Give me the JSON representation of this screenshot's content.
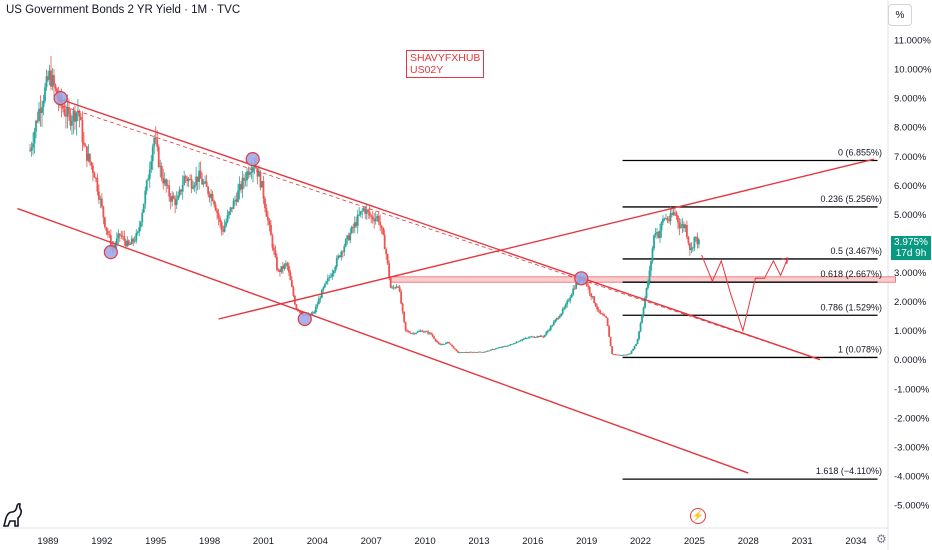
{
  "header": {
    "title": "US Government Bonds 2 YR Yield · 1M · TVC",
    "scale_button": "%"
  },
  "watermark": {
    "line1": "SHAVYFXHUB",
    "line2": "US02Y"
  },
  "price_badge": {
    "value": "3.975%",
    "countdown": "17d 9h",
    "color": "#089981"
  },
  "icons": {
    "logo": "tradingview-logo-icon",
    "bolt": "lightning-icon",
    "settings": "settings-icon"
  },
  "colors": {
    "up": "#26a69a",
    "down": "#ef5350",
    "trendline": "#e5363f",
    "fib": "#000000",
    "zone": "#f8c9c9"
  },
  "chart_data": {
    "type": "candlestick",
    "title": "US Government Bonds 2 YR Yield · 1M · TVC",
    "x_ticks": [
      "1989",
      "1992",
      "1995",
      "1998",
      "2001",
      "2004",
      "2007",
      "2010",
      "2013",
      "2016",
      "2019",
      "2022",
      "2025",
      "2028",
      "2031",
      "2034"
    ],
    "y_ticks": [
      "11.000%",
      "10.000%",
      "9.000%",
      "8.000%",
      "7.000%",
      "6.000%",
      "5.000%",
      "4.000%",
      "3.000%",
      "2.000%",
      "1.000%",
      "0.000%",
      "-1.000%",
      "-2.000%",
      "-3.000%",
      "-4.000%",
      "-5.000%"
    ],
    "ylim": [
      -5.5,
      11.5
    ],
    "xlim": [
      1987.3,
      2036.2
    ],
    "price_path": [
      [
        1988.0,
        7.2
      ],
      [
        1988.5,
        8.6
      ],
      [
        1989.1,
        9.8
      ],
      [
        1989.6,
        8.9
      ],
      [
        1990.2,
        8.3
      ],
      [
        1990.7,
        8.6
      ],
      [
        1991.0,
        7.3
      ],
      [
        1991.6,
        6.4
      ],
      [
        1992.2,
        4.6
      ],
      [
        1992.6,
        3.8
      ],
      [
        1993.0,
        4.3
      ],
      [
        1993.5,
        3.9
      ],
      [
        1994.0,
        4.3
      ],
      [
        1994.5,
        6.0
      ],
      [
        1994.9,
        7.7
      ],
      [
        1995.3,
        6.4
      ],
      [
        1995.8,
        5.6
      ],
      [
        1996.2,
        5.4
      ],
      [
        1996.6,
        6.3
      ],
      [
        1997.0,
        6.1
      ],
      [
        1997.4,
        6.3
      ],
      [
        1997.8,
        5.9
      ],
      [
        1998.2,
        5.6
      ],
      [
        1998.7,
        4.4
      ],
      [
        1999.2,
        5.2
      ],
      [
        1999.7,
        5.9
      ],
      [
        2000.2,
        6.6
      ],
      [
        2000.5,
        6.8
      ],
      [
        2000.9,
        6.0
      ],
      [
        2001.3,
        4.6
      ],
      [
        2001.8,
        3.0
      ],
      [
        2002.3,
        3.3
      ],
      [
        2002.8,
        1.8
      ],
      [
        2003.3,
        1.5
      ],
      [
        2003.8,
        1.6
      ],
      [
        2004.3,
        2.4
      ],
      [
        2004.8,
        3.0
      ],
      [
        2005.3,
        3.7
      ],
      [
        2005.8,
        4.3
      ],
      [
        2006.3,
        4.9
      ],
      [
        2006.6,
        5.2
      ],
      [
        2007.0,
        4.9
      ],
      [
        2007.4,
        4.9
      ],
      [
        2007.8,
        3.8
      ],
      [
        2008.1,
        2.4
      ],
      [
        2008.5,
        2.6
      ],
      [
        2008.9,
        1.0
      ],
      [
        2009.3,
        0.9
      ],
      [
        2009.8,
        1.0
      ],
      [
        2010.3,
        0.9
      ],
      [
        2010.8,
        0.5
      ],
      [
        2011.3,
        0.6
      ],
      [
        2011.8,
        0.25
      ],
      [
        2012.5,
        0.26
      ],
      [
        2013.3,
        0.27
      ],
      [
        2014.0,
        0.4
      ],
      [
        2014.7,
        0.5
      ],
      [
        2015.4,
        0.7
      ],
      [
        2016.0,
        0.8
      ],
      [
        2016.6,
        0.8
      ],
      [
        2017.2,
        1.3
      ],
      [
        2017.8,
        1.8
      ],
      [
        2018.3,
        2.5
      ],
      [
        2018.8,
        2.9
      ],
      [
        2019.2,
        2.3
      ],
      [
        2019.7,
        1.6
      ],
      [
        2020.1,
        1.4
      ],
      [
        2020.4,
        0.2
      ],
      [
        2020.9,
        0.15
      ],
      [
        2021.4,
        0.2
      ],
      [
        2021.8,
        0.6
      ],
      [
        2022.1,
        1.6
      ],
      [
        2022.5,
        3.0
      ],
      [
        2022.8,
        4.5
      ],
      [
        2023.0,
        4.3
      ],
      [
        2023.3,
        4.9
      ],
      [
        2023.6,
        4.8
      ],
      [
        2023.9,
        5.1
      ],
      [
        2024.2,
        4.6
      ],
      [
        2024.5,
        4.6
      ],
      [
        2024.8,
        3.7
      ],
      [
        2025.0,
        4.2
      ],
      [
        2025.3,
        3.98
      ]
    ],
    "fib_levels": [
      {
        "ratio": "0",
        "value": 6.855,
        "label": "0 (6.855%)"
      },
      {
        "ratio": "0.236",
        "value": 5.256,
        "label": "0.236 (5.256%)"
      },
      {
        "ratio": "0.5",
        "value": 3.467,
        "label": "0.5 (3.467%)"
      },
      {
        "ratio": "0.618",
        "value": 2.667,
        "label": "0.618 (2.667%)"
      },
      {
        "ratio": "0.786",
        "value": 1.529,
        "label": "0.786 (1.529%)"
      },
      {
        "ratio": "1",
        "value": 0.078,
        "label": "1 (0.078%)"
      },
      {
        "ratio": "1.618",
        "value": -4.11,
        "label": "1.618 (−4.110%)"
      }
    ],
    "fib_x_range": [
      2021.0,
      2035.2
    ],
    "support_zone": [
      2.667,
      2.85
    ],
    "support_zone_x": [
      2008.1,
      2036.2
    ],
    "trendlines": [
      {
        "name": "upper-channel",
        "from": [
          1989.5,
          9.0
        ],
        "to": [
          2032.0,
          0.0
        ]
      },
      {
        "name": "lower-channel",
        "from": [
          1987.3,
          5.2
        ],
        "to": [
          2028.0,
          -3.9
        ]
      },
      {
        "name": "rising-line",
        "from": [
          1998.5,
          1.4
        ],
        "to": [
          2035.0,
          6.9
        ]
      }
    ],
    "touch_points": [
      [
        1989.7,
        9.0
      ],
      [
        2000.4,
        6.9
      ],
      [
        1992.5,
        3.7
      ],
      [
        2003.3,
        1.4
      ],
      [
        2018.7,
        2.8
      ]
    ],
    "projection": [
      [
        2025.4,
        3.6
      ],
      [
        2026.0,
        2.7
      ],
      [
        2026.5,
        3.4
      ],
      [
        2027.0,
        2.3
      ],
      [
        2027.7,
        1.0
      ],
      [
        2028.4,
        2.8
      ],
      [
        2028.9,
        2.8
      ],
      [
        2029.4,
        3.4
      ],
      [
        2029.8,
        2.9
      ],
      [
        2030.2,
        3.5
      ]
    ]
  }
}
